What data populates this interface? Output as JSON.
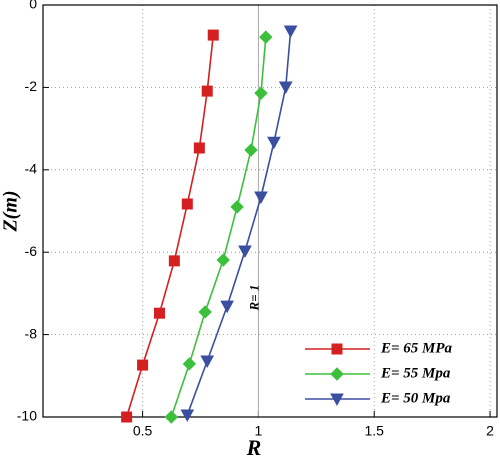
{
  "chart_data": {
    "type": "line",
    "x_label": "R",
    "y_label": "Z(m)",
    "xlim": [
      0.07,
      2.03
    ],
    "ylim": [
      -10,
      0
    ],
    "xticks": [
      0.5,
      1,
      1.5,
      2
    ],
    "yticks": [
      0,
      -2,
      -4,
      -6,
      -8,
      -10
    ],
    "grid": true,
    "legend": "lower right",
    "reference_line": {
      "x": 1,
      "label": "R= 1"
    },
    "series": [
      {
        "name": "E= 65 MPa",
        "color": "#d42020",
        "marker": "square",
        "x": [
          0.805,
          0.779,
          0.745,
          0.693,
          0.637,
          0.573,
          0.5,
          0.431
        ],
        "values": [
          -0.73,
          -2.09,
          -3.47,
          -4.83,
          -6.21,
          -7.48,
          -8.74,
          -10
        ]
      },
      {
        "name": "E= 55 Mpa",
        "color": "#3cc03c",
        "marker": "diamond",
        "x": [
          1.032,
          1.011,
          0.968,
          0.908,
          0.848,
          0.77,
          0.702,
          0.624
        ],
        "values": [
          -0.78,
          -2.14,
          -3.52,
          -4.9,
          -6.19,
          -7.45,
          -8.71,
          -10
        ]
      },
      {
        "name": "E= 50 Mpa",
        "color": "#3a4fa0",
        "marker": "triangle-down",
        "x": [
          1.139,
          1.118,
          1.067,
          1.011,
          0.942,
          0.865,
          0.779,
          0.693
        ],
        "values": [
          -0.63,
          -1.99,
          -3.33,
          -4.66,
          -5.97,
          -7.31,
          -8.64,
          -9.95
        ]
      }
    ]
  }
}
